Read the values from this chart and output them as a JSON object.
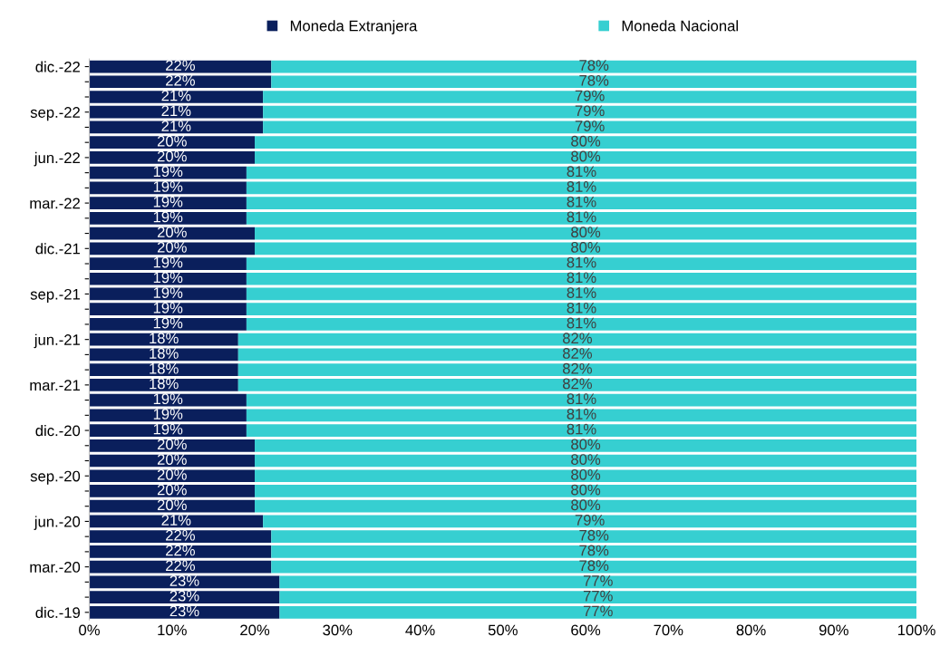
{
  "chart_data": {
    "type": "bar",
    "orientation": "horizontal",
    "stacked": true,
    "legend": "top",
    "grid": false,
    "categories": [
      "dic.-22",
      null,
      null,
      "sep.-22",
      null,
      null,
      "jun.-22",
      null,
      null,
      "mar.-22",
      null,
      null,
      "dic.-21",
      null,
      null,
      "sep.-21",
      null,
      null,
      "jun.-21",
      null,
      null,
      "mar.-21",
      null,
      null,
      "dic.-20",
      null,
      null,
      "sep.-20",
      null,
      null,
      "jun.-20",
      null,
      null,
      "mar.-20",
      null,
      null,
      "dic.-19"
    ],
    "series": [
      {
        "name": "Moneda Extranjera",
        "color": "#0a1f5c",
        "values": [
          22,
          22,
          21,
          21,
          21,
          20,
          20,
          19,
          19,
          19,
          19,
          20,
          20,
          19,
          19,
          19,
          19,
          19,
          18,
          18,
          18,
          18,
          19,
          19,
          19,
          20,
          20,
          20,
          20,
          20,
          21,
          22,
          22,
          22,
          23,
          23,
          23
        ],
        "value_labels": [
          "22%",
          "22%",
          "21%",
          "21%",
          "21%",
          "20%",
          "20%",
          "19%",
          "19%",
          "19%",
          "19%",
          "20%",
          "20%",
          "19%",
          "19%",
          "19%",
          "19%",
          "19%",
          "18%",
          "18%",
          "18%",
          "18%",
          "19%",
          "19%",
          "19%",
          "20%",
          "20%",
          "20%",
          "20%",
          "20%",
          "21%",
          "22%",
          "22%",
          "22%",
          "23%",
          "23%",
          "23%"
        ]
      },
      {
        "name": "Moneda Nacional",
        "color": "#36cfd1",
        "values": [
          78,
          78,
          79,
          79,
          79,
          80,
          80,
          81,
          81,
          81,
          81,
          80,
          80,
          81,
          81,
          81,
          81,
          81,
          82,
          82,
          82,
          82,
          81,
          81,
          81,
          80,
          80,
          80,
          80,
          80,
          79,
          78,
          78,
          78,
          77,
          77,
          77
        ],
        "value_labels": [
          "78%",
          "78%",
          "79%",
          "79%",
          "79%",
          "80%",
          "80%",
          "81%",
          "81%",
          "81%",
          "81%",
          "80%",
          "80%",
          "81%",
          "81%",
          "81%",
          "81%",
          "81%",
          "82%",
          "82%",
          "82%",
          "82%",
          "81%",
          "81%",
          "81%",
          "80%",
          "80%",
          "80%",
          "80%",
          "80%",
          "79%",
          "78%",
          "78%",
          "78%",
          "77%",
          "77%",
          "77%"
        ]
      }
    ],
    "xlim": [
      0,
      100
    ],
    "xticks": [
      {
        "value": 0,
        "label": "0%"
      },
      {
        "value": 10,
        "label": "10%"
      },
      {
        "value": 20,
        "label": "20%"
      },
      {
        "value": 30,
        "label": "30%"
      },
      {
        "value": 40,
        "label": "40%"
      },
      {
        "value": 50,
        "label": "50%"
      },
      {
        "value": 60,
        "label": "60%"
      },
      {
        "value": 70,
        "label": "70%"
      },
      {
        "value": 80,
        "label": "80%"
      },
      {
        "value": 90,
        "label": "90%"
      },
      {
        "value": 100,
        "label": "100%"
      }
    ]
  }
}
